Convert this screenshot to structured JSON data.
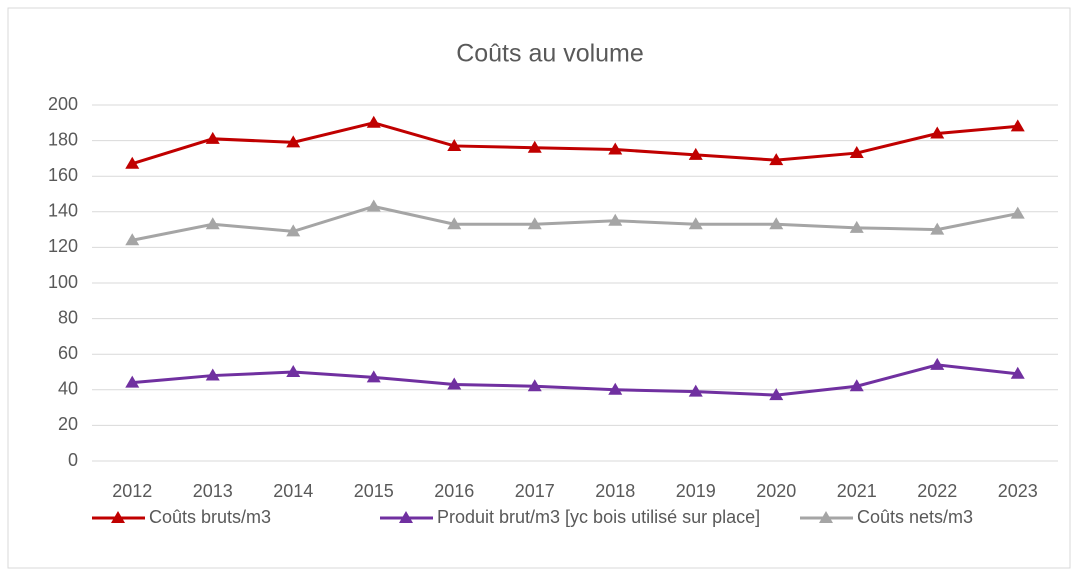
{
  "chart_data": {
    "type": "line",
    "title": "Coûts au volume",
    "categories": [
      "2012",
      "2013",
      "2014",
      "2015",
      "2016",
      "2017",
      "2018",
      "2019",
      "2020",
      "2021",
      "2022",
      "2023"
    ],
    "series": [
      {
        "name": "Coûts bruts/m3",
        "color": "#c00000",
        "values": [
          167,
          181,
          179,
          190,
          177,
          176,
          175,
          172,
          169,
          173,
          184,
          188
        ]
      },
      {
        "name": "Produit brut/m3 [yc bois utilisé sur place]",
        "color": "#7030a0",
        "values": [
          44,
          48,
          50,
          47,
          43,
          42,
          40,
          39,
          37,
          42,
          54,
          49
        ]
      },
      {
        "name": "Coûts nets/m3",
        "color": "#a5a5a5",
        "values": [
          124,
          133,
          129,
          143,
          133,
          133,
          135,
          133,
          133,
          131,
          130,
          139
        ]
      }
    ],
    "ylim": [
      0,
      200
    ],
    "yticks": [
      0,
      20,
      40,
      60,
      80,
      100,
      120,
      140,
      160,
      180,
      200
    ],
    "grid": true,
    "legend": "bottom"
  }
}
